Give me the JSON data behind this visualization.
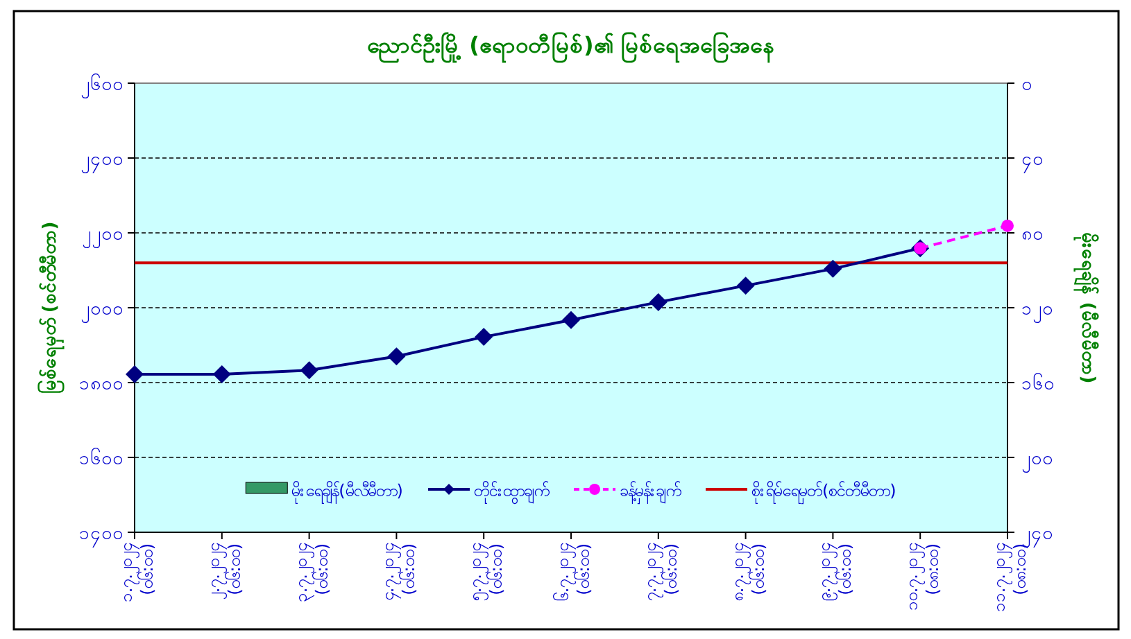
{
  "chart_data": {
    "type": "line",
    "title": "ညောင်ဦးမြို့ (ဧရာဝတီမြစ်)၏ မြစ်ရေအခြေအနေ",
    "ylabel": "မြစ်ရေမှတ် (စင်တီမီတာ)",
    "y2label": "မိုးရေချိန် (မီလီမီတာ)",
    "categories": [
      "၁.၇.၂၀၂၄ (၀၆:၀၀)",
      "၂.၇.၂၀၂၄ (၀၆:၀၀)",
      "၃.၇.၂၀၂၄ (၀၆:၀၀)",
      "၄.၇.၂၀၂၄ (၀၆:၀၀)",
      "၅.၇.၂၀၂၄ (၀၆:၀၀)",
      "၆.၇.၂၀၂၄ (၀၆:၀၀)",
      "၇.၇.၂၀၂၄ (၀၆:၀၀)",
      "၈.၇.၂၀၂၄ (၀၆:၀၀)",
      "၉.၇.၂၀၂၄ (၀၆:၀၀)",
      "၁၀.၇.၂၀၂၄ (၀၈:၀၀)",
      "၁၁.၇.၂၀၂၄ (၀၈:၀၀)"
    ],
    "series": [
      {
        "name": "မိုးရေချိန်(မီလီမီတာ)",
        "type": "bar",
        "axis": "y2",
        "color": "#339966",
        "values": [
          0,
          0,
          0,
          0,
          0,
          0,
          0,
          0,
          0,
          0,
          0
        ]
      },
      {
        "name": "တိုင်းထွာချက်",
        "color": "#000080",
        "marker": "diamond",
        "values": [
          1822,
          1822,
          1833,
          1870,
          1922,
          1967,
          2015,
          2059,
          2104,
          2159,
          null
        ]
      },
      {
        "name": "ခန့်မှန်းချက်",
        "color": "#ff00ff",
        "marker": "circle",
        "line_style": "dashed",
        "values": [
          null,
          null,
          null,
          null,
          null,
          null,
          null,
          null,
          null,
          2159,
          2219
        ]
      }
    ],
    "ref_lines": [
      {
        "axis": "y",
        "value": 2120,
        "label": "စိုးရိမ်ရေမှတ်(စင်တီမီတာ)",
        "color": "#cc0000"
      }
    ],
    "ylim": [
      1400,
      2600
    ],
    "yticks": [
      {
        "value": 1400,
        "label": "၁၄၀၀"
      },
      {
        "value": 1600,
        "label": "၁၆၀၀"
      },
      {
        "value": 1800,
        "label": "၁၈၀၀"
      },
      {
        "value": 2000,
        "label": "၂၀၀၀"
      },
      {
        "value": 2200,
        "label": "၂၂၀၀"
      },
      {
        "value": 2400,
        "label": "၂၄၀၀"
      },
      {
        "value": 2600,
        "label": "၂၆၀၀"
      }
    ],
    "y2lim": [
      240,
      0
    ],
    "y2ticks": [
      {
        "value": 0,
        "label": "၀"
      },
      {
        "value": 40,
        "label": "၄၀"
      },
      {
        "value": 80,
        "label": "၈၀"
      },
      {
        "value": 120,
        "label": "၁၂၀"
      },
      {
        "value": 160,
        "label": "၁၆၀"
      },
      {
        "value": 200,
        "label": "၂၀၀"
      },
      {
        "value": 240,
        "label": "၂၄၀"
      }
    ],
    "grid": "y",
    "legend": "bottom"
  }
}
